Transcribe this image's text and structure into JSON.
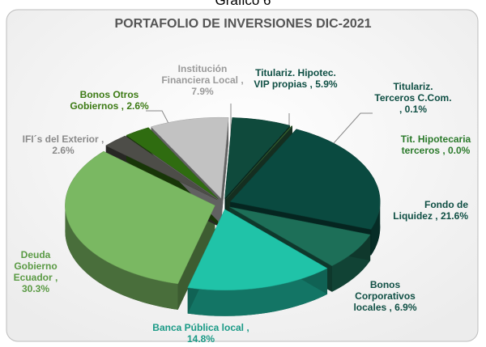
{
  "chart_data": {
    "type": "pie3d",
    "caption": "Gráfico 6",
    "title": "PORTAFOLIO DE INVERSIONES DIC-2021",
    "labels": [
      "Titulariz. Hipotec. VIP propias , 5.9%",
      "Titulariz. Terceros C.Com. , 0.1%",
      "Tit. Hipotecaria terceros , 0.0%",
      "Fondo de Liquidez , 21.6%",
      "Bonos Corporativos locales , 6.9%",
      "Banca Pública local , 14.8%",
      "Deuda Gobierno Ecuador , 30.3%",
      "IFI´s del Exterior , 2.6%",
      "Bonos Otros Gobiernos , 2.6%",
      "Institución Financiera Local , 7.9%"
    ],
    "values": [
      5.9,
      0.1,
      0.0,
      21.6,
      6.9,
      14.8,
      30.3,
      2.6,
      2.6,
      7.9
    ],
    "colors": [
      "#0f4a3c",
      "#3f6b2a",
      "#2a5c40",
      "#0a4a40",
      "#1d6f58",
      "#20c3a8",
      "#7ab862",
      "#4d4d48",
      "#2f6c10",
      "#c2c2c2"
    ],
    "label_colors": [
      "#0f4f44",
      "#0f4f44",
      "#2b7a2b",
      "#0f4f44",
      "#0f4f44",
      "#1a9a86",
      "#5a9a44",
      "#8a8a8a",
      "#3c7a14",
      "#9a9a9a"
    ]
  }
}
